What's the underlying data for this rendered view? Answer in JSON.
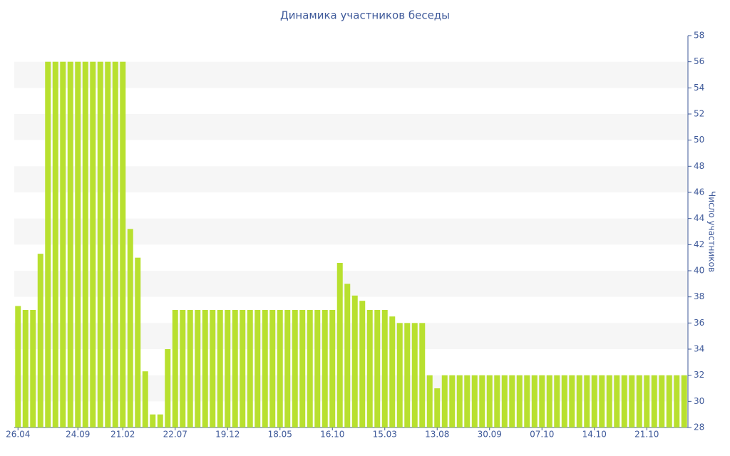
{
  "chart_data": {
    "type": "bar",
    "title": "Динамика участников беседы",
    "y_label": "Число участников",
    "categories": [
      "26.04",
      null,
      null,
      null,
      null,
      null,
      null,
      null,
      "24.09",
      null,
      null,
      null,
      null,
      null,
      "21.02",
      null,
      null,
      null,
      null,
      null,
      null,
      "22.07",
      null,
      null,
      null,
      null,
      null,
      null,
      "19.12",
      null,
      null,
      null,
      null,
      null,
      null,
      "18.05",
      null,
      null,
      null,
      null,
      null,
      null,
      "16.10",
      null,
      null,
      null,
      null,
      null,
      null,
      "15.03",
      null,
      null,
      null,
      null,
      null,
      null,
      "13.08",
      null,
      null,
      null,
      null,
      null,
      null,
      "30.09",
      null,
      null,
      null,
      null,
      null,
      null,
      "07.10",
      null,
      null,
      null,
      null,
      null,
      null,
      "14.10",
      null,
      null,
      null,
      null,
      null,
      null,
      "21.10",
      null,
      null,
      null,
      null,
      null
    ],
    "values": [
      37.3,
      37,
      37,
      41.3,
      56,
      56,
      56,
      56,
      56,
      56,
      56,
      56,
      56,
      56,
      56,
      43.2,
      41,
      32.3,
      29,
      29,
      34,
      37,
      37,
      37,
      37,
      37,
      37,
      37,
      37,
      37,
      37,
      37,
      37,
      37,
      37,
      37,
      37,
      37,
      37,
      37,
      37,
      37,
      37,
      40.6,
      39,
      38.1,
      37.7,
      37,
      37,
      37,
      36.5,
      36,
      36,
      36,
      36,
      32,
      31,
      32,
      32,
      32,
      32,
      32,
      32,
      32,
      32,
      32,
      32,
      32,
      32,
      32,
      32,
      32,
      32,
      32,
      32,
      32,
      32,
      32,
      32,
      32,
      32,
      32,
      32,
      32,
      32,
      32,
      32,
      32,
      32,
      32
    ],
    "color": "#b8e02f",
    "ylim": [
      28,
      58
    ],
    "yticks": [
      28,
      30,
      32,
      34,
      36,
      38,
      40,
      42,
      44,
      46,
      48,
      50,
      52,
      54,
      56,
      58
    ],
    "grid": true,
    "y_axis_side": "right"
  }
}
